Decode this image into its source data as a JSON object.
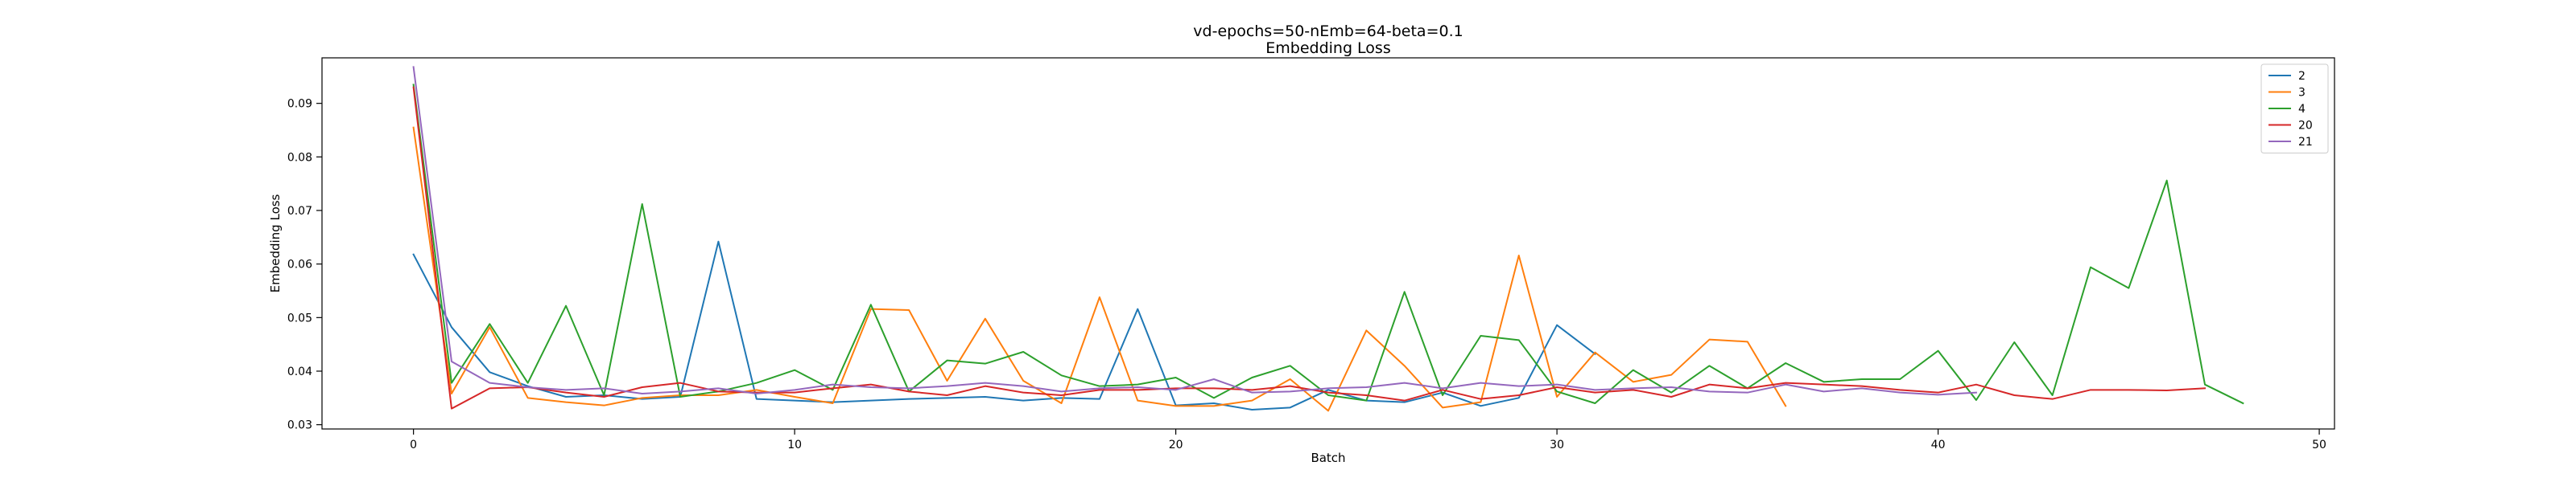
{
  "chart_data": {
    "type": "line",
    "title": "vd-epochs=50-nEmb=64-beta=0.1",
    "subtitle": "Embedding Loss",
    "xlabel": "Batch",
    "ylabel": "Embedding Loss",
    "xlim": [
      -2.4,
      50.4
    ],
    "ylim": [
      0.0292,
      0.0985
    ],
    "xticks": [
      0,
      10,
      20,
      30,
      40,
      50
    ],
    "yticks": [
      0.03,
      0.04,
      0.05,
      0.06,
      0.07,
      0.08,
      0.09
    ],
    "grid": false,
    "legend_position": "top-right",
    "series": [
      {
        "name": "2",
        "color": "#1f77b4",
        "values": [
          0.0618,
          0.0482,
          0.0398,
          0.0372,
          0.0352,
          0.0355,
          0.0348,
          0.0352,
          0.0642,
          0.0348,
          0.0345,
          0.0342,
          0.0345,
          0.0348,
          0.035,
          0.0352,
          0.0345,
          0.035,
          0.0348,
          0.0516,
          0.0336,
          0.034,
          0.0328,
          0.0332,
          0.0365,
          0.0345,
          0.0342,
          0.036,
          0.0335,
          0.035,
          0.0486,
          0.0432
        ]
      },
      {
        "name": "3",
        "color": "#ff7f0e",
        "values": [
          0.0855,
          0.0358,
          0.0482,
          0.035,
          0.0342,
          0.0336,
          0.035,
          0.0355,
          0.0355,
          0.0365,
          0.0352,
          0.034,
          0.0516,
          0.0514,
          0.0382,
          0.0498,
          0.0382,
          0.034,
          0.0538,
          0.0345,
          0.0335,
          0.0335,
          0.0345,
          0.0385,
          0.0326,
          0.0476,
          0.041,
          0.0332,
          0.0342,
          0.0616,
          0.0352,
          0.0435,
          0.038,
          0.0393,
          0.0459,
          0.0455,
          0.0335
        ]
      },
      {
        "name": "4",
        "color": "#2ca02c",
        "values": [
          0.0935,
          0.0378,
          0.0488,
          0.0378,
          0.0522,
          0.0355,
          0.0712,
          0.0352,
          0.0362,
          0.0378,
          0.0402,
          0.0365,
          0.0524,
          0.0362,
          0.042,
          0.0414,
          0.0436,
          0.0392,
          0.0372,
          0.0375,
          0.0388,
          0.035,
          0.0388,
          0.041,
          0.0355,
          0.0345,
          0.0548,
          0.0355,
          0.0466,
          0.0458,
          0.0362,
          0.034,
          0.0402,
          0.036,
          0.041,
          0.0368,
          0.0415,
          0.038,
          0.0385,
          0.0385,
          0.0438,
          0.0346,
          0.0454,
          0.0355,
          0.0594,
          0.0555,
          0.0756,
          0.0375,
          0.034
        ]
      },
      {
        "name": "20",
        "color": "#d62728",
        "values": [
          0.093,
          0.033,
          0.0368,
          0.037,
          0.036,
          0.0352,
          0.037,
          0.0378,
          0.0362,
          0.036,
          0.036,
          0.0368,
          0.0375,
          0.0362,
          0.0355,
          0.0372,
          0.036,
          0.0355,
          0.0365,
          0.0365,
          0.0368,
          0.0368,
          0.0365,
          0.0372,
          0.036,
          0.0355,
          0.0345,
          0.0365,
          0.0348,
          0.0355,
          0.037,
          0.036,
          0.0365,
          0.0352,
          0.0375,
          0.0368,
          0.0378,
          0.0375,
          0.0372,
          0.0365,
          0.036,
          0.0375,
          0.0355,
          0.0348,
          0.0365,
          0.0365,
          0.0364,
          0.0368
        ]
      },
      {
        "name": "21",
        "color": "#9467bd",
        "values": [
          0.0968,
          0.0418,
          0.0378,
          0.037,
          0.0365,
          0.0368,
          0.0358,
          0.0362,
          0.0368,
          0.0358,
          0.0365,
          0.0375,
          0.037,
          0.0368,
          0.0372,
          0.0378,
          0.0372,
          0.0362,
          0.0368,
          0.037,
          0.0365,
          0.0385,
          0.036,
          0.0362,
          0.0368,
          0.037,
          0.0378,
          0.0368,
          0.0378,
          0.0372,
          0.0375,
          0.0365,
          0.0368,
          0.037,
          0.0362,
          0.036,
          0.0375,
          0.0362,
          0.0368,
          0.036,
          0.0356,
          0.036
        ]
      }
    ]
  }
}
